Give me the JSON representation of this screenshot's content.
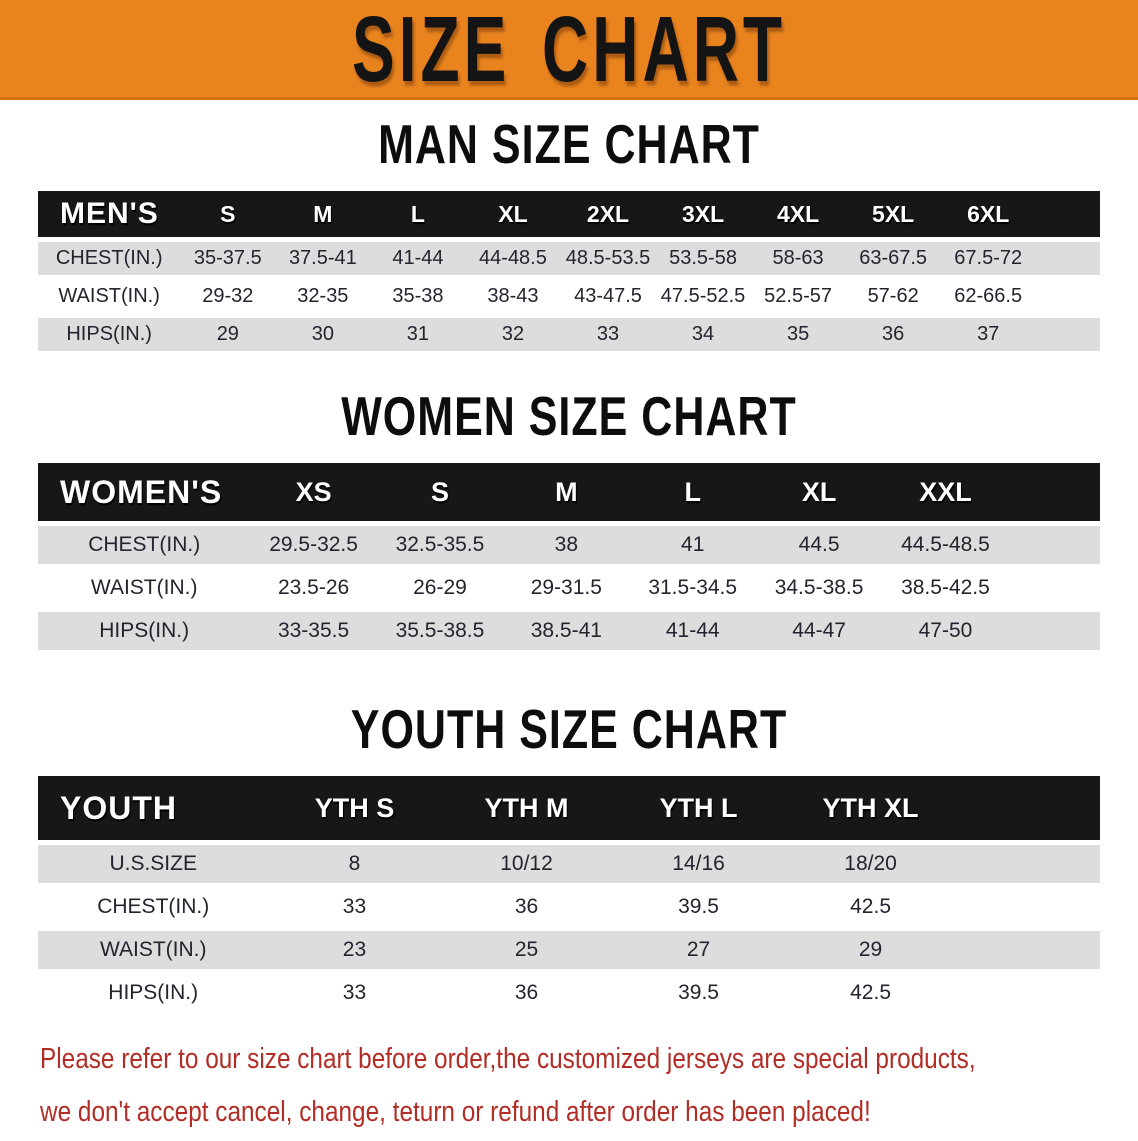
{
  "banner": {
    "title": "SIZE CHART"
  },
  "colors": {
    "banner_orange": "#E8831E",
    "header_black": "#171717",
    "row_gray": "#DDDDDD",
    "disclaimer_red": "#B22D26"
  },
  "sections": [
    {
      "id": "men",
      "heading": "MAN SIZE CHART",
      "table": {
        "label": "MEN'S",
        "columns": [
          "S",
          "M",
          "L",
          "XL",
          "2XL",
          "3XL",
          "4XL",
          "5XL",
          "6XL"
        ],
        "rows": [
          {
            "label": "CHEST(IN.)",
            "values": [
              "35-37.5",
              "37.5-41",
              "41-44",
              "44-48.5",
              "48.5-53.5",
              "53.5-58",
              "58-63",
              "63-67.5",
              "67.5-72"
            ]
          },
          {
            "label": "WAIST(IN.)",
            "values": [
              "29-32",
              "32-35",
              "35-38",
              "38-43",
              "43-47.5",
              "47.5-52.5",
              "52.5-57",
              "57-62",
              "62-66.5"
            ]
          },
          {
            "label": "HIPS(IN.)",
            "values": [
              "29",
              "30",
              "31",
              "32",
              "33",
              "34",
              "35",
              "36",
              "37"
            ]
          }
        ]
      }
    },
    {
      "id": "women",
      "heading": "WOMEN SIZE CHART",
      "table": {
        "label": "WOMEN'S",
        "columns": [
          "XS",
          "S",
          "M",
          "L",
          "XL",
          "XXL"
        ],
        "rows": [
          {
            "label": "CHEST(IN.)",
            "values": [
              "29.5-32.5",
              "32.5-35.5",
              "38",
              "41",
              "44.5",
              "44.5-48.5"
            ]
          },
          {
            "label": "WAIST(IN.)",
            "values": [
              "23.5-26",
              "26-29",
              "29-31.5",
              "31.5-34.5",
              "34.5-38.5",
              "38.5-42.5"
            ]
          },
          {
            "label": "HIPS(IN.)",
            "values": [
              "33-35.5",
              "35.5-38.5",
              "38.5-41",
              "41-44",
              "44-47",
              "47-50"
            ]
          }
        ]
      }
    },
    {
      "id": "youth",
      "heading": "YOUTH SIZE CHART",
      "table": {
        "label": "YOUTH",
        "columns": [
          "YTH S",
          "YTH M",
          "YTH L",
          "YTH XL"
        ],
        "rows": [
          {
            "label": "U.S.SIZE",
            "values": [
              "8",
              "10/12",
              "14/16",
              "18/20"
            ]
          },
          {
            "label": "CHEST(IN.)",
            "values": [
              "33",
              "36",
              "39.5",
              "42.5"
            ]
          },
          {
            "label": "WAIST(IN.)",
            "values": [
              "23",
              "25",
              "27",
              "29"
            ]
          },
          {
            "label": "HIPS(IN.)",
            "values": [
              "33",
              "36",
              "39.5",
              "42.5"
            ]
          }
        ]
      }
    }
  ],
  "disclaimer": {
    "line1": "Please refer to our size chart before order,the customized jerseys are special products,",
    "line2": "we don't accept cancel, change, teturn or refund after order has been placed!"
  }
}
